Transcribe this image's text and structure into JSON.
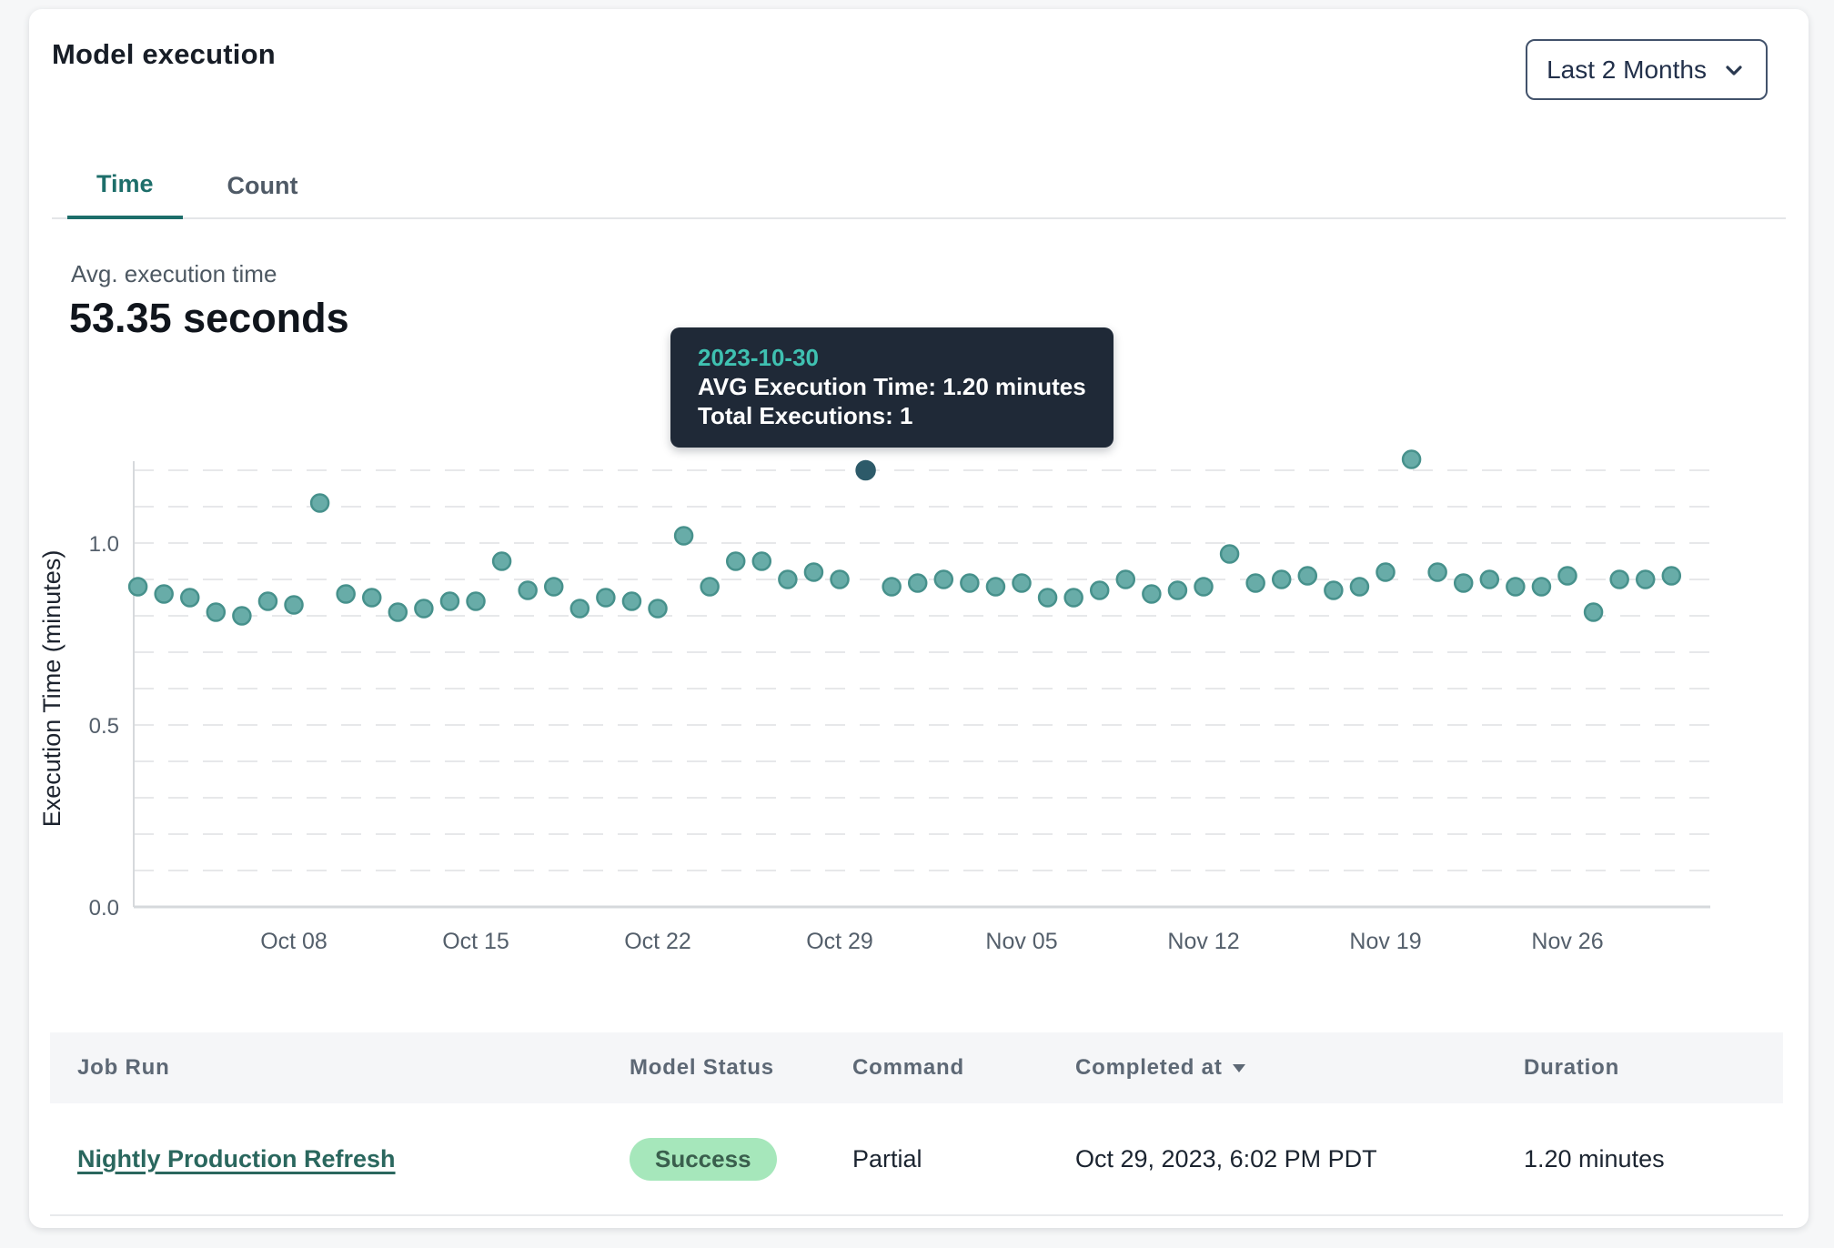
{
  "header": {
    "title": "Model execution",
    "range_selector": "Last 2 Months"
  },
  "tabs": [
    {
      "label": "Time",
      "active": true
    },
    {
      "label": "Count",
      "active": false
    }
  ],
  "summary": {
    "label": "Avg. execution time",
    "value": "53.35 seconds"
  },
  "tooltip": {
    "date": "2023-10-30",
    "line1": "AVG Execution Time: 1.20 minutes",
    "line2": "Total Executions: 1"
  },
  "chart_data": {
    "type": "scatter",
    "title": "Model execution time by day",
    "xlabel": "",
    "ylabel": "Execution Time (minutes)",
    "ylim": [
      0,
      1.25
    ],
    "y_ticks": [
      0.0,
      0.5,
      1.0
    ],
    "grid": "horizontal-dashed",
    "grid_step": 0.1,
    "legend": "none",
    "x_tick_labels": [
      {
        "day_index": 6,
        "label": "Oct 08"
      },
      {
        "day_index": 13,
        "label": "Oct 15"
      },
      {
        "day_index": 20,
        "label": "Oct 22"
      },
      {
        "day_index": 27,
        "label": "Oct 29"
      },
      {
        "day_index": 34,
        "label": "Nov 05"
      },
      {
        "day_index": 41,
        "label": "Nov 12"
      },
      {
        "day_index": 48,
        "label": "Nov 19"
      },
      {
        "day_index": 55,
        "label": "Nov 26"
      }
    ],
    "series_name": "AVG Execution Time (minutes)",
    "dates": [
      "2023-10-02",
      "2023-10-03",
      "2023-10-04",
      "2023-10-05",
      "2023-10-06",
      "2023-10-07",
      "2023-10-08",
      "2023-10-09",
      "2023-10-10",
      "2023-10-11",
      "2023-10-12",
      "2023-10-13",
      "2023-10-14",
      "2023-10-15",
      "2023-10-16",
      "2023-10-17",
      "2023-10-18",
      "2023-10-19",
      "2023-10-20",
      "2023-10-21",
      "2023-10-22",
      "2023-10-23",
      "2023-10-24",
      "2023-10-25",
      "2023-10-26",
      "2023-10-27",
      "2023-10-28",
      "2023-10-29",
      "2023-10-30",
      "2023-10-31",
      "2023-11-01",
      "2023-11-02",
      "2023-11-03",
      "2023-11-04",
      "2023-11-05",
      "2023-11-06",
      "2023-11-07",
      "2023-11-08",
      "2023-11-09",
      "2023-11-10",
      "2023-11-11",
      "2023-11-12",
      "2023-11-13",
      "2023-11-14",
      "2023-11-15",
      "2023-11-16",
      "2023-11-17",
      "2023-11-18",
      "2023-11-19",
      "2023-11-20",
      "2023-11-21",
      "2023-11-22",
      "2023-11-23",
      "2023-11-24",
      "2023-11-25",
      "2023-11-26",
      "2023-11-27",
      "2023-11-28",
      "2023-11-29",
      "2023-11-30"
    ],
    "values": [
      0.88,
      0.86,
      0.85,
      0.81,
      0.8,
      0.84,
      0.83,
      1.11,
      0.86,
      0.85,
      0.81,
      0.82,
      0.84,
      0.84,
      0.95,
      0.87,
      0.88,
      0.82,
      0.85,
      0.84,
      0.82,
      1.02,
      0.88,
      0.95,
      0.95,
      0.9,
      0.92,
      0.9,
      1.2,
      0.88,
      0.89,
      0.9,
      0.89,
      0.88,
      0.89,
      0.85,
      0.85,
      0.87,
      0.9,
      0.86,
      0.87,
      0.88,
      0.97,
      0.89,
      0.9,
      0.91,
      0.87,
      0.88,
      0.92,
      1.23,
      0.92,
      0.89,
      0.9,
      0.88,
      0.88,
      0.91,
      0.81,
      0.9,
      0.9,
      0.91
    ],
    "selected_index": 28,
    "selected_point": {
      "date": "2023-10-30",
      "value": 1.2,
      "total_executions": 1
    },
    "colors": {
      "point_fill": "#68aca8",
      "point_stroke": "#47918c",
      "selected_fill": "#2d5a69",
      "grid": "#e7e8ea",
      "axis": "#d6d9dc",
      "tick_text": "#545f6b",
      "axis_title": "#1c232e"
    }
  },
  "table": {
    "columns": [
      "Job Run",
      "Model Status",
      "Command",
      "Completed at",
      "Duration"
    ],
    "sort": {
      "column": "Completed at",
      "direction": "desc"
    },
    "rows": [
      {
        "job_run": "Nightly Production Refresh",
        "model_status": "Success",
        "command": "Partial",
        "completed_at": "Oct 29, 2023, 6:02 PM PDT",
        "duration": "1.20 minutes"
      }
    ]
  }
}
